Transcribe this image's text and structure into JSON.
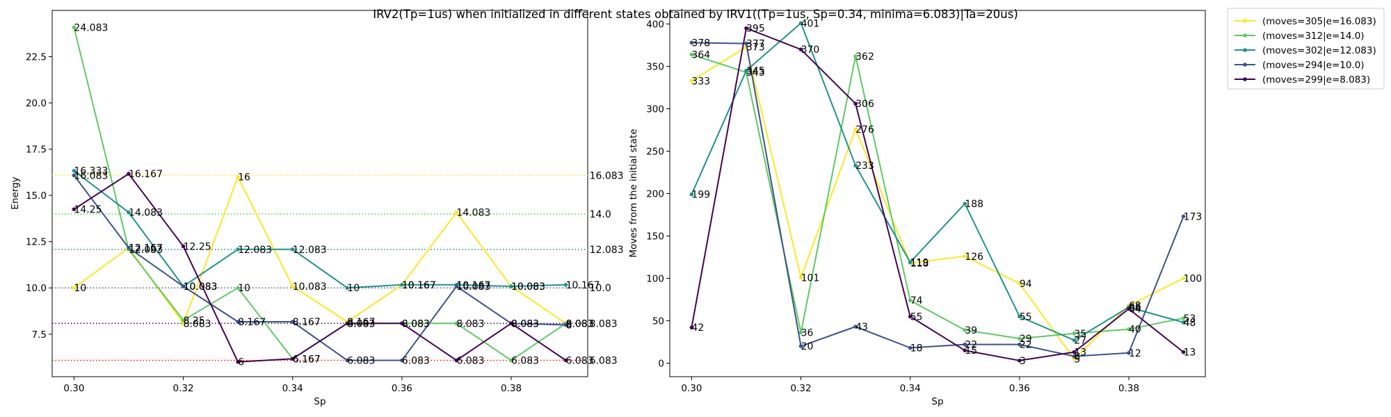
{
  "figure": {
    "title": "IRV2(Tp=1us) when initialized in different states obtained by IRV1((Tp=1us, Sp=0.34, minima=6.083)|Ta=20us)"
  },
  "legend": {
    "placement": "outside-right-top",
    "entries": [
      {
        "label": "(moves=305|e=16.083)",
        "color": "#fde725"
      },
      {
        "label": "(moves=312|e=14.0)",
        "color": "#5ec962"
      },
      {
        "label": "(moves=302|e=12.083)",
        "color": "#21918c"
      },
      {
        "label": "(moves=294|e=10.0)",
        "color": "#3b528b"
      },
      {
        "label": "(moves=299|e=8.083)",
        "color": "#440154"
      }
    ]
  },
  "chart_data": [
    {
      "type": "line",
      "xlabel": "Sp",
      "ylabel": "Energy",
      "xlim": [
        0.296,
        0.394
      ],
      "ylim": [
        5.2,
        25.0
      ],
      "xticks": [
        "0.30",
        "0.32",
        "0.34",
        "0.36",
        "0.38"
      ],
      "yticks": [
        "7.5",
        "10.0",
        "12.5",
        "15.0",
        "17.5",
        "20.0",
        "22.5"
      ],
      "grid": false,
      "x": [
        0.3,
        0.31,
        0.32,
        0.33,
        0.34,
        0.35,
        0.36,
        0.37,
        0.38,
        0.39
      ],
      "series": [
        {
          "name": "(moves=305|e=16.083)",
          "color": "#fde725",
          "values": [
            10.0,
            12.167,
            8.083,
            16.0,
            10.083,
            8.167,
            10.167,
            14.083,
            10.083,
            8.083
          ]
        },
        {
          "name": "(moves=312|e=14.0)",
          "color": "#5ec962",
          "values": [
            24.083,
            12.083,
            8.25,
            10.0,
            6.167,
            8.083,
            8.083,
            8.083,
            6.083,
            8.083
          ]
        },
        {
          "name": "(moves=302|e=12.083)",
          "color": "#21918c",
          "values": [
            16.333,
            14.083,
            10.083,
            12.083,
            12.083,
            10.0,
            10.167,
            10.167,
            10.083,
            10.167
          ]
        },
        {
          "name": "(moves=294|e=10.0)",
          "color": "#3b528b",
          "values": [
            16.083,
            12.167,
            10.083,
            8.167,
            8.167,
            6.083,
            6.083,
            10.083,
            8.083,
            8.0
          ]
        },
        {
          "name": "(moves=299|e=8.083)",
          "color": "#440154",
          "values": [
            14.25,
            16.167,
            12.25,
            6.0,
            6.167,
            8.083,
            8.083,
            6.083,
            8.083,
            6.083
          ]
        }
      ],
      "reference_lines": [
        {
          "value": 16.083,
          "label": "16.083",
          "color": "#fde725"
        },
        {
          "value": 14.0,
          "label": "14.0",
          "color": "#5ec962"
        },
        {
          "value": 12.083,
          "label": "12.083",
          "color": "#21918c"
        },
        {
          "value": 10.0,
          "label": "10.0",
          "color": "#3b528b"
        },
        {
          "value": 8.083,
          "label": "8.083",
          "color": "#440154"
        },
        {
          "value": 6.083,
          "label": "6.083",
          "color": "#ff0000"
        }
      ]
    },
    {
      "type": "line",
      "xlabel": "Sp",
      "ylabel": "Moves from the initial state",
      "xlim": [
        0.296,
        0.394
      ],
      "ylim": [
        -16,
        416
      ],
      "xticks": [
        "0.30",
        "0.32",
        "0.34",
        "0.36",
        "0.38"
      ],
      "yticks": [
        "0",
        "50",
        "100",
        "150",
        "200",
        "250",
        "300",
        "350",
        "400"
      ],
      "grid": false,
      "x": [
        0.3,
        0.31,
        0.32,
        0.33,
        0.34,
        0.35,
        0.36,
        0.37,
        0.38,
        0.39
      ],
      "series": [
        {
          "name": "(moves=305|e=16.083)",
          "color": "#fde725",
          "values": [
            333,
            373,
            101,
            276,
            118,
            126,
            94,
            5,
            68,
            100
          ]
        },
        {
          "name": "(moves=312|e=14.0)",
          "color": "#5ec962",
          "values": [
            364,
            343,
            36,
            362,
            74,
            39,
            29,
            35,
            40,
            53
          ]
        },
        {
          "name": "(moves=302|e=12.083)",
          "color": "#21918c",
          "values": [
            199,
            345,
            401,
            233,
            119,
            188,
            55,
            27,
            66,
            48
          ]
        },
        {
          "name": "(moves=294|e=10.0)",
          "color": "#3b528b",
          "values": [
            378,
            377,
            20,
            43,
            18,
            22,
            22,
            8,
            12,
            173
          ]
        },
        {
          "name": "(moves=299|e=8.083)",
          "color": "#440154",
          "values": [
            42,
            395,
            370,
            306,
            55,
            15,
            3,
            13,
            64,
            13
          ]
        }
      ]
    }
  ]
}
